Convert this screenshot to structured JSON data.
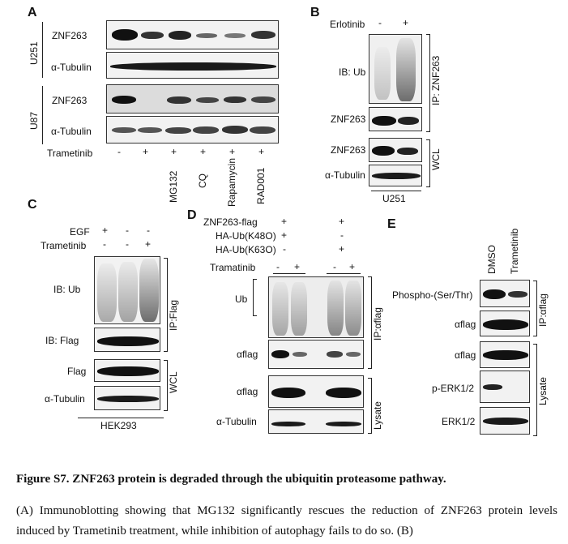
{
  "panels": {
    "A": {
      "letter": "A",
      "cell_lines": [
        "U251",
        "U87"
      ],
      "row_labels": [
        "ZNF263",
        "α-Tubulin",
        "ZNF263",
        "α-Tubulin"
      ],
      "treatment_label": "Trametinib",
      "treatment_marks": [
        "-",
        "+",
        "+",
        "+",
        "+",
        "+"
      ],
      "drug_labels": [
        "MG132",
        "CQ",
        "Rapamycin",
        "RAD001"
      ]
    },
    "B": {
      "letter": "B",
      "treatment_label": "Erlotinib",
      "treatment_marks": [
        "-",
        "+"
      ],
      "row_labels": [
        "IB: Ub",
        "ZNF263",
        "ZNF263",
        "α-Tubulin"
      ],
      "ip_label": "IP: ZNF263",
      "wcl_label": "WCL",
      "cell_line": "U251"
    },
    "C": {
      "letter": "C",
      "condition_labels": [
        "EGF",
        "Trametinib"
      ],
      "egf_marks": [
        "+",
        "-",
        "-"
      ],
      "tram_marks": [
        "-",
        "-",
        "+"
      ],
      "row_labels": [
        "IB: Ub",
        "IB: Flag",
        "Flag",
        "α-Tubulin"
      ],
      "ip_label": "IP:Flag",
      "wcl_label": "WCL",
      "cell_line": "HEK293"
    },
    "D": {
      "letter": "D",
      "condition_labels": [
        "ZNF263-flag",
        "HA-Ub(K48O)",
        "HA-Ub(K63O)",
        "Tramatinib"
      ],
      "set1_marks": [
        "+",
        "+",
        "-"
      ],
      "set2_marks": [
        "+",
        "-",
        "+"
      ],
      "tram_marks": [
        "-",
        "+",
        "-",
        "+"
      ],
      "row_labels": [
        "Ub",
        "αflag",
        "αflag",
        "α-Tubulin"
      ],
      "ip_label": "IP:αflag",
      "lysate_label": "Lysate"
    },
    "E": {
      "letter": "E",
      "column_labels": [
        "DMSO",
        "Trametinib"
      ],
      "row_labels": [
        "Phospho-(Ser/Thr)",
        "αflag",
        "αflag",
        "p-ERK1/2",
        "ERK1/2"
      ],
      "ip_label": "IP:αflag",
      "lysate_label": "Lysate"
    }
  },
  "caption": {
    "title": "Figure S7. ZNF263 protein is degraded through the ubiquitin proteasome pathway.",
    "body": "(A) Immunoblotting showing that MG132 significantly rescues the reduction of ZNF263 protein levels induced by Trametinib treatment, while inhibition of autophagy fails to do so. (B)"
  },
  "colors": {
    "band": "#111111",
    "membrane": "#f2f2f2",
    "caption_underline": "#cc2222"
  }
}
